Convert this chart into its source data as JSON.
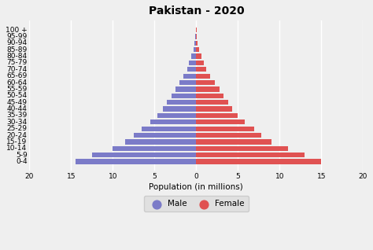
{
  "title": "Pakistan - 2020",
  "xlabel": "Population (in millions)",
  "age_groups": [
    "0-4",
    "5-9",
    "10-14",
    "15-19",
    "20-24",
    "25-29",
    "30-34",
    "35-39",
    "40-44",
    "45-49",
    "50-54",
    "55-59",
    "60-64",
    "65-69",
    "70-74",
    "75-79",
    "80-84",
    "85-89",
    "90-94",
    "95-99",
    "100 +"
  ],
  "male": [
    14.5,
    12.5,
    10.0,
    8.5,
    7.5,
    6.5,
    5.5,
    4.7,
    4.0,
    3.5,
    3.0,
    2.5,
    2.0,
    1.5,
    1.1,
    0.85,
    0.6,
    0.35,
    0.2,
    0.1,
    0.05
  ],
  "female": [
    15.0,
    13.0,
    11.0,
    9.0,
    7.8,
    6.9,
    5.8,
    5.0,
    4.3,
    3.8,
    3.3,
    2.8,
    2.2,
    1.7,
    1.2,
    0.9,
    0.65,
    0.35,
    0.2,
    0.1,
    0.05
  ],
  "male_color": "#7b7bc8",
  "female_color": "#e05252",
  "background_color": "#efefef",
  "xlim": 20,
  "bar_height": 0.75,
  "title_fontsize": 10,
  "label_fontsize": 7.5,
  "tick_fontsize": 6.5
}
